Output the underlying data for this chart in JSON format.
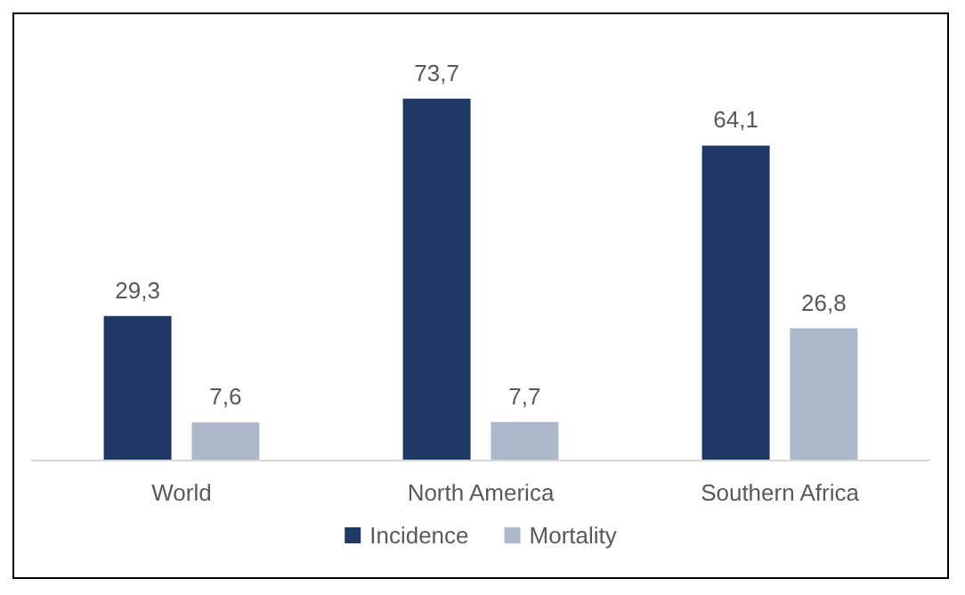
{
  "chart_data": {
    "type": "bar",
    "categories": [
      "World",
      "North America",
      "Southern Africa"
    ],
    "series": [
      {
        "name": "Incidence",
        "color": "#1f3864",
        "values": [
          29.3,
          73.7,
          64.1
        ],
        "value_labels": [
          "29,3",
          "73,7",
          "64,1"
        ]
      },
      {
        "name": "Mortality",
        "color": "#adb9ca",
        "values": [
          7.6,
          7.7,
          26.8
        ],
        "value_labels": [
          "7,6",
          "7,7",
          "26,8"
        ]
      }
    ],
    "legend": "bottom"
  }
}
